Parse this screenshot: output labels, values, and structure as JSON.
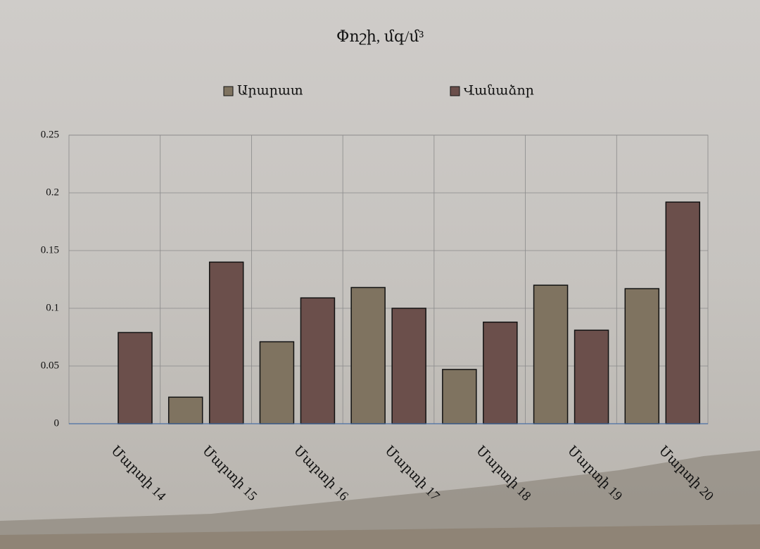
{
  "chart_data": {
    "type": "bar",
    "title": "Փոշի, մգ/մ³",
    "categories": [
      "Մարտի 14",
      "Մարտի 15",
      "Մարտի 16",
      "Մարտի 17",
      "Մարտի 18",
      "Մարտի 19",
      "Մարտի 20"
    ],
    "series": [
      {
        "name": "Արարատ",
        "color": "#7f7360",
        "values": [
          null,
          0.023,
          0.071,
          0.118,
          0.047,
          0.12,
          0.117
        ]
      },
      {
        "name": "Վանաձոր",
        "color": "#6b4f4b",
        "values": [
          0.079,
          0.14,
          0.109,
          0.1,
          0.088,
          0.081,
          0.192
        ]
      }
    ],
    "ylim": [
      0,
      0.25
    ],
    "yticks": [
      0,
      0.05,
      0.1,
      0.15,
      0.2,
      0.25
    ],
    "grid": true,
    "legend": "top"
  }
}
